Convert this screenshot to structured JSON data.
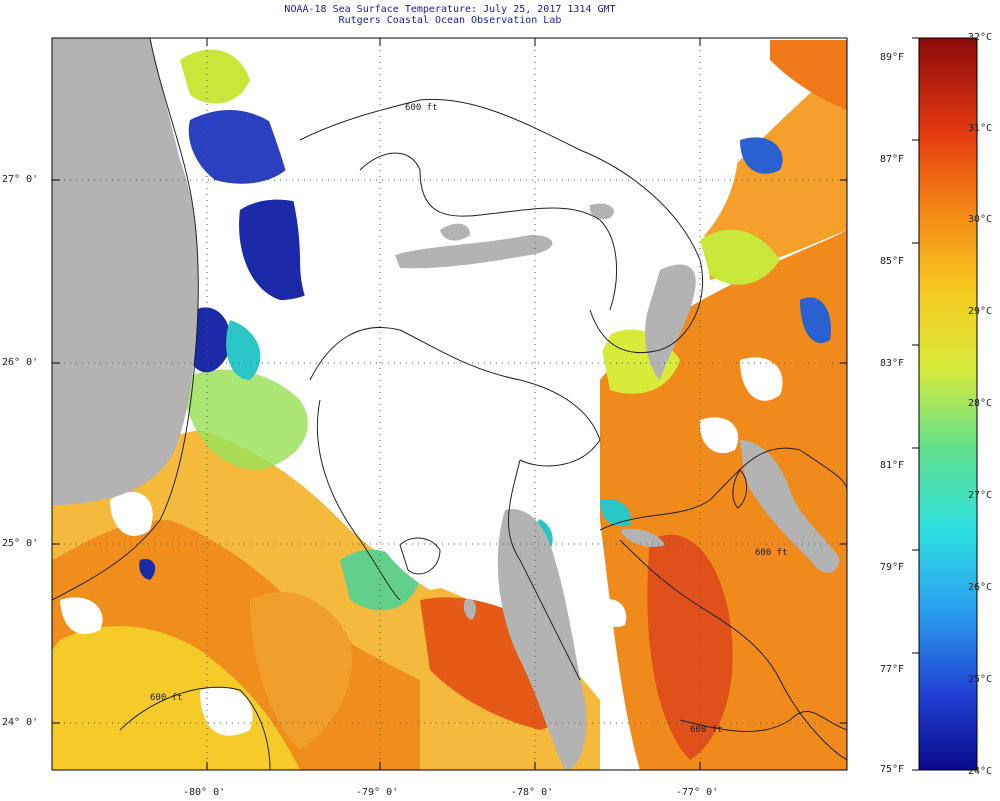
{
  "title": {
    "line1": "NOAA-18 Sea Surface Temperature:  July 25, 2017 1314 GMT",
    "line2": "Rutgers Coastal Ocean Observation Lab"
  },
  "map": {
    "latitude_labels": [
      "27° 0'",
      "26° 0'",
      "25° 0'",
      "24° 0'"
    ],
    "longitude_labels": [
      "-80° 0'",
      "-79° 0'",
      "-78° 0'",
      "-77° 0'"
    ],
    "contour_label": "600 ft",
    "colors": {
      "land": "#b3b3b3",
      "cloud": "#ffffff",
      "warm": "#f08a1a",
      "hot": "#e0501a",
      "yellow": "#f4d12a",
      "cold": "#1a2aa8",
      "teal": "#2bc6c8"
    }
  },
  "colorbar": {
    "celsius_labels": [
      "32°C",
      "31°C",
      "30°C",
      "29°C",
      "28°C",
      "27°C",
      "26°C",
      "25°C",
      "24°C"
    ],
    "fahrenheit_labels": [
      "89°F",
      "87°F",
      "85°F",
      "83°F",
      "81°F",
      "79°F",
      "77°F",
      "75°F"
    ],
    "range_c": [
      24,
      32
    ],
    "range_f": [
      75,
      89
    ]
  }
}
